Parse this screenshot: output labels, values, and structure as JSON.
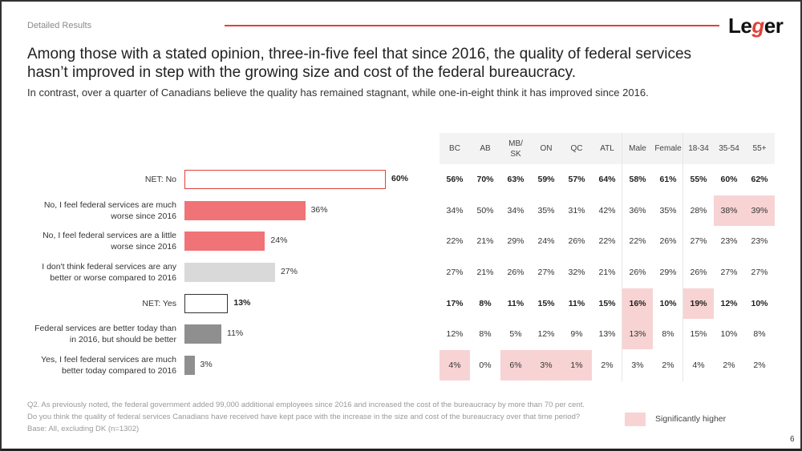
{
  "header": {
    "section_label": "Detailed Results",
    "logo": {
      "text_pre": "Le",
      "text_g": "g",
      "text_post": "er"
    },
    "title": "Among those with a stated opinion, three-in-five feel that since 2016, the quality of federal services hasn’t improved in step with the growing size and cost of the federal bureaucracy.",
    "subtitle": "In contrast, over a quarter of Canadians believe the quality has remained stagnant, while one-in-eight think it has improved since 2016."
  },
  "colors": {
    "accent": "#e2403a",
    "bar_no": "#f07377",
    "bar_neutral": "#d9d9d9",
    "bar_yes": "#8f8f8f",
    "net_no_outline": "#e2403a",
    "net_yes_outline": "#333333",
    "significant": "#f8d3d4"
  },
  "chart_data": {
    "type": "bar",
    "orientation": "horizontal",
    "title": "",
    "xlim": [
      0,
      100
    ],
    "categories": [
      "NET: No",
      "No, I feel federal services are much worse since 2016",
      "No, I feel federal services are a little worse since 2016",
      "I don't think federal services are any better or worse compared to 2016",
      "NET: Yes",
      "Federal services are better today than in 2016, but should be better",
      "Yes, I feel federal services are much better today compared to 2016"
    ],
    "labels_display": [
      [
        "NET: No"
      ],
      [
        "No, I feel federal services are much",
        "worse since 2016"
      ],
      [
        "No, I feel federal services are a little",
        "worse since 2016"
      ],
      [
        "I don't think federal services are any",
        "better or worse compared to 2016"
      ],
      [
        "NET: Yes"
      ],
      [
        "Federal services are better today than",
        "in 2016, but should be better"
      ],
      [
        "Yes, I feel federal services are much",
        "better today compared to 2016"
      ]
    ],
    "values": [
      60,
      36,
      24,
      27,
      13,
      11,
      3
    ],
    "value_labels": [
      "60%",
      "36%",
      "24%",
      "27%",
      "13%",
      "11%",
      "3%"
    ],
    "row_types": [
      "net-no",
      "no",
      "no",
      "neutral",
      "net-yes",
      "yes",
      "yes"
    ],
    "table": {
      "columns": [
        "BC",
        "AB",
        "MB/\nSK",
        "ON",
        "QC",
        "ATL",
        "Male",
        "Female",
        "18-34",
        "35-54",
        "55+"
      ],
      "column_groups": [
        [
          "BC",
          "AB",
          "MB/SK",
          "ON",
          "QC",
          "ATL"
        ],
        [
          "Male",
          "Female"
        ],
        [
          "18-34",
          "35-54",
          "55+"
        ]
      ],
      "rows": [
        [
          "56%",
          "70%",
          "63%",
          "59%",
          "57%",
          "64%",
          "58%",
          "61%",
          "55%",
          "60%",
          "62%"
        ],
        [
          "34%",
          "50%",
          "34%",
          "35%",
          "31%",
          "42%",
          "36%",
          "35%",
          "28%",
          "38%",
          "39%"
        ],
        [
          "22%",
          "21%",
          "29%",
          "24%",
          "26%",
          "22%",
          "22%",
          "26%",
          "27%",
          "23%",
          "23%"
        ],
        [
          "27%",
          "21%",
          "26%",
          "27%",
          "32%",
          "21%",
          "26%",
          "29%",
          "26%",
          "27%",
          "27%"
        ],
        [
          "17%",
          "8%",
          "11%",
          "15%",
          "11%",
          "15%",
          "16%",
          "10%",
          "19%",
          "12%",
          "10%"
        ],
        [
          "12%",
          "8%",
          "5%",
          "12%",
          "9%",
          "13%",
          "13%",
          "8%",
          "15%",
          "10%",
          "8%"
        ],
        [
          "4%",
          "0%",
          "6%",
          "3%",
          "1%",
          "2%",
          "3%",
          "2%",
          "4%",
          "2%",
          "2%"
        ]
      ],
      "significant_cells": [
        [
          1,
          9
        ],
        [
          1,
          10
        ],
        [
          4,
          6
        ],
        [
          4,
          8
        ],
        [
          5,
          6
        ],
        [
          6,
          0
        ],
        [
          6,
          2
        ],
        [
          6,
          3
        ],
        [
          6,
          4
        ]
      ]
    }
  },
  "footer": {
    "question": "Q2.  As previously noted, the federal government added 99,000 additional employees since 2016 and increased the cost of the bureaucracy by more than 70 per cent. Do you think the quality of federal services Canadians have received have kept pace with the increase in the size and cost of the bureaucracy over that time period?",
    "base": "Base: All, excluding DK (n=1302)",
    "legend_label": "Significantly higher",
    "page_number": "6"
  }
}
